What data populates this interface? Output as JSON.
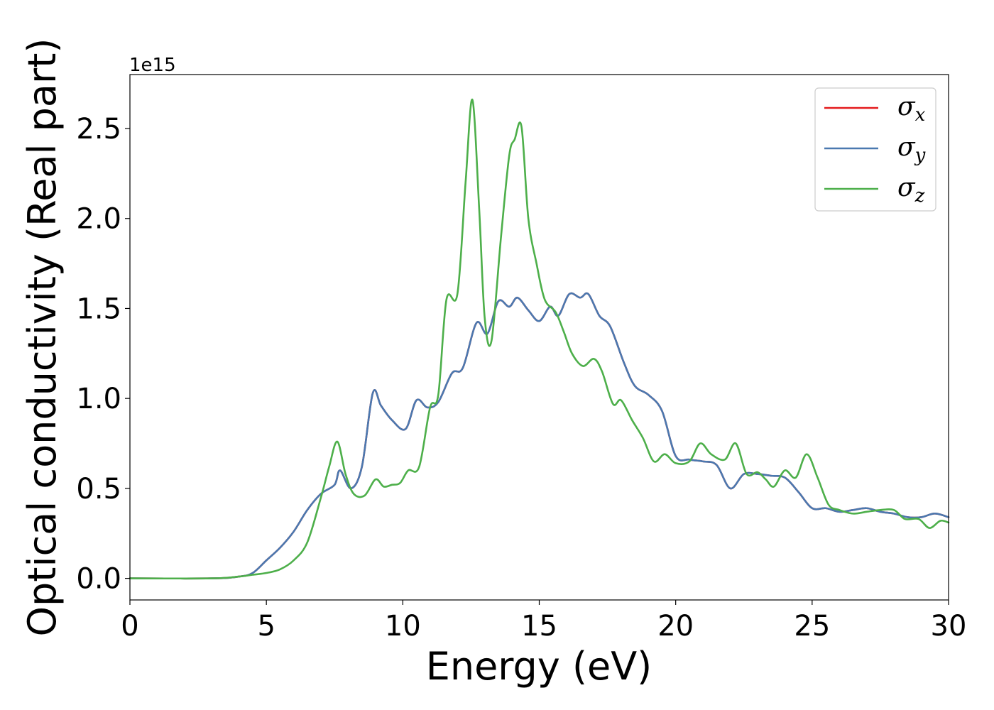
{
  "chart_data": {
    "type": "line",
    "title": "",
    "xlabel": "Energy (eV)",
    "ylabel": "Optical conductivity (Real part)",
    "y_offset_label": "1e15",
    "xlim": [
      0,
      30
    ],
    "ylim": [
      -0.12,
      2.8
    ],
    "x_ticks": [
      0,
      5,
      10,
      15,
      20,
      25,
      30
    ],
    "x_tick_labels": [
      "0",
      "5",
      "10",
      "15",
      "20",
      "25",
      "30"
    ],
    "y_ticks": [
      0.0,
      0.5,
      1.0,
      1.5,
      2.0,
      2.5
    ],
    "y_tick_labels": [
      "0.0",
      "0.5",
      "1.0",
      "1.5",
      "2.0",
      "2.5"
    ],
    "grid": false,
    "legend_position": "top-right",
    "series": [
      {
        "name": "σx",
        "legend_symbol": "σ",
        "legend_subscript": "x",
        "color": "#e41a1c",
        "x": [
          0,
          3,
          4,
          4.5,
          5,
          5.5,
          6,
          6.5,
          7,
          7.5,
          7.7,
          8.1,
          8.5,
          8.9,
          9.2,
          9.6,
          10.1,
          10.5,
          10.9,
          11.3,
          11.8,
          12.2,
          12.7,
          13.1,
          13.5,
          13.9,
          14.2,
          14.6,
          15.0,
          15.4,
          15.7,
          16.1,
          16.5,
          16.8,
          17.2,
          17.6,
          18.1,
          18.5,
          19.0,
          19.5,
          20.0,
          20.5,
          21.0,
          21.5,
          22.0,
          22.5,
          23.0,
          23.5,
          24.0,
          24.5,
          25.0,
          25.5,
          26.0,
          26.5,
          27.0,
          27.5,
          28.0,
          28.5,
          29.0,
          29.5,
          30.0
        ],
        "y": [
          0.0,
          0.0,
          0.01,
          0.03,
          0.1,
          0.17,
          0.26,
          0.38,
          0.47,
          0.52,
          0.6,
          0.5,
          0.62,
          1.03,
          0.96,
          0.88,
          0.83,
          0.99,
          0.95,
          0.98,
          1.14,
          1.17,
          1.42,
          1.36,
          1.54,
          1.51,
          1.56,
          1.49,
          1.43,
          1.51,
          1.46,
          1.58,
          1.56,
          1.58,
          1.46,
          1.4,
          1.2,
          1.07,
          1.02,
          0.93,
          0.68,
          0.66,
          0.65,
          0.63,
          0.5,
          0.58,
          0.58,
          0.57,
          0.56,
          0.48,
          0.39,
          0.39,
          0.37,
          0.38,
          0.39,
          0.37,
          0.36,
          0.34,
          0.34,
          0.36,
          0.34
        ]
      },
      {
        "name": "σy",
        "legend_symbol": "σ",
        "legend_subscript": "y",
        "color": "#4a79b0",
        "x": [
          0,
          3,
          4,
          4.5,
          5,
          5.5,
          6,
          6.5,
          7,
          7.5,
          7.7,
          8.1,
          8.5,
          8.9,
          9.2,
          9.6,
          10.1,
          10.5,
          10.9,
          11.3,
          11.8,
          12.2,
          12.7,
          13.1,
          13.5,
          13.9,
          14.2,
          14.6,
          15.0,
          15.4,
          15.7,
          16.1,
          16.5,
          16.8,
          17.2,
          17.6,
          18.1,
          18.5,
          19.0,
          19.5,
          20.0,
          20.5,
          21.0,
          21.5,
          22.0,
          22.5,
          23.0,
          23.5,
          24.0,
          24.5,
          25.0,
          25.5,
          26.0,
          26.5,
          27.0,
          27.5,
          28.0,
          28.5,
          29.0,
          29.5,
          30.0
        ],
        "y": [
          0.0,
          0.0,
          0.01,
          0.03,
          0.1,
          0.17,
          0.26,
          0.38,
          0.47,
          0.52,
          0.6,
          0.5,
          0.62,
          1.03,
          0.96,
          0.88,
          0.83,
          0.99,
          0.95,
          0.98,
          1.14,
          1.17,
          1.42,
          1.36,
          1.54,
          1.51,
          1.56,
          1.49,
          1.43,
          1.51,
          1.46,
          1.58,
          1.56,
          1.58,
          1.46,
          1.4,
          1.2,
          1.07,
          1.02,
          0.93,
          0.68,
          0.66,
          0.65,
          0.63,
          0.5,
          0.58,
          0.58,
          0.57,
          0.56,
          0.48,
          0.39,
          0.39,
          0.37,
          0.38,
          0.39,
          0.37,
          0.36,
          0.34,
          0.34,
          0.36,
          0.34
        ]
      },
      {
        "name": "σz",
        "legend_symbol": "σ",
        "legend_subscript": "z",
        "color": "#4daf4a",
        "x": [
          0,
          3,
          4,
          4.5,
          5,
          5.5,
          6,
          6.5,
          7,
          7.3,
          7.6,
          7.9,
          8.2,
          8.6,
          9.0,
          9.3,
          9.6,
          9.9,
          10.2,
          10.6,
          11.0,
          11.3,
          11.6,
          12.0,
          12.3,
          12.55,
          12.8,
          13.0,
          13.25,
          13.6,
          13.9,
          14.1,
          14.35,
          14.6,
          14.9,
          15.2,
          15.6,
          15.9,
          16.2,
          16.6,
          17.0,
          17.3,
          17.7,
          18.0,
          18.4,
          18.8,
          19.2,
          19.6,
          20.0,
          20.5,
          20.9,
          21.3,
          21.8,
          22.2,
          22.6,
          23.0,
          23.3,
          23.6,
          24.0,
          24.4,
          24.8,
          25.2,
          25.6,
          26.0,
          26.5,
          27.0,
          27.5,
          28.0,
          28.4,
          28.9,
          29.3,
          29.7,
          30.0
        ],
        "y": [
          0.0,
          0.0,
          0.01,
          0.02,
          0.03,
          0.05,
          0.1,
          0.2,
          0.45,
          0.62,
          0.76,
          0.58,
          0.47,
          0.46,
          0.55,
          0.51,
          0.52,
          0.53,
          0.6,
          0.62,
          0.95,
          1.02,
          1.55,
          1.58,
          2.2,
          2.66,
          2.05,
          1.45,
          1.32,
          1.9,
          2.35,
          2.44,
          2.51,
          2.0,
          1.75,
          1.55,
          1.48,
          1.37,
          1.25,
          1.18,
          1.22,
          1.15,
          0.97,
          0.99,
          0.88,
          0.78,
          0.65,
          0.69,
          0.64,
          0.65,
          0.75,
          0.69,
          0.66,
          0.75,
          0.58,
          0.59,
          0.55,
          0.51,
          0.6,
          0.56,
          0.69,
          0.56,
          0.41,
          0.38,
          0.36,
          0.37,
          0.38,
          0.38,
          0.33,
          0.33,
          0.28,
          0.32,
          0.31
        ]
      }
    ]
  }
}
